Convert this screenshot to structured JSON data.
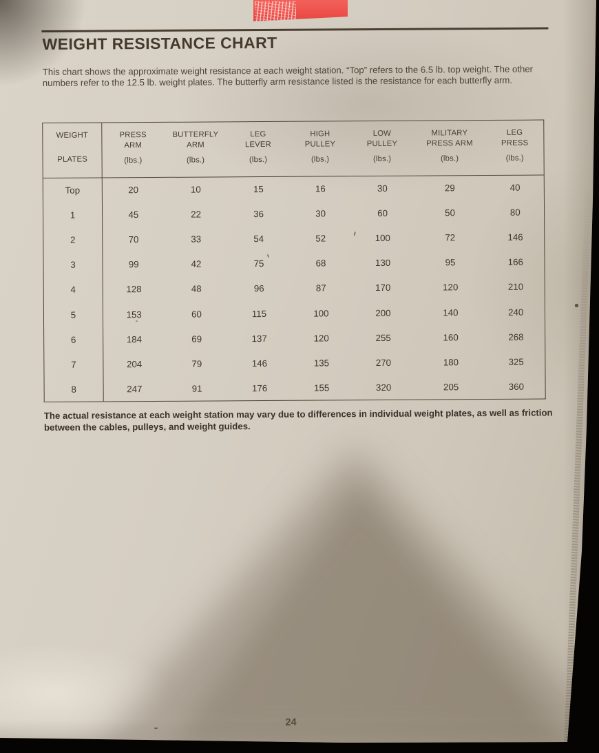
{
  "page": {
    "title": "WEIGHT RESISTANCE CHART",
    "intro": "This chart shows the approximate weight resistance at each weight station. “Top” refers to the 6.5 lb. top weight. The other numbers refer to the 12.5 lb. weight plates. The butterfly arm resistance listed is the resistance for each butterfly arm.",
    "note": "The actual resistance at each weight station may vary due to differences in individual weight plates, as well as friction between the cables, pulleys, and weight guides.",
    "page_number": "24"
  },
  "table": {
    "headers": [
      [
        "WEIGHT",
        "PLATES"
      ],
      [
        "PRESS",
        "ARM",
        "(lbs.)"
      ],
      [
        "BUTTERFLY",
        "ARM",
        "(lbs.)"
      ],
      [
        "LEG",
        "LEVER",
        "(lbs.)"
      ],
      [
        "HIGH",
        "PULLEY",
        "(lbs.)"
      ],
      [
        "LOW",
        "PULLEY",
        "(lbs.)"
      ],
      [
        "MILITARY",
        "PRESS ARM",
        "(lbs.)"
      ],
      [
        "LEG",
        "PRESS",
        "(lbs.)"
      ]
    ],
    "rows": [
      [
        "Top",
        "20",
        "10",
        "15",
        "16",
        "30",
        "29",
        "40"
      ],
      [
        "1",
        "45",
        "22",
        "36",
        "30",
        "60",
        "50",
        "80"
      ],
      [
        "2",
        "70",
        "33",
        "54",
        "52",
        "100",
        "72",
        "146"
      ],
      [
        "3",
        "99",
        "42",
        "75",
        "68",
        "130",
        "95",
        "166"
      ],
      [
        "4",
        "128",
        "48",
        "96",
        "87",
        "170",
        "120",
        "210"
      ],
      [
        "5",
        "153",
        "60",
        "115",
        "100",
        "200",
        "140",
        "240"
      ],
      [
        "6",
        "184",
        "69",
        "137",
        "120",
        "255",
        "160",
        "268"
      ],
      [
        "7",
        "204",
        "79",
        "146",
        "135",
        "270",
        "180",
        "325"
      ],
      [
        "8",
        "247",
        "91",
        "176",
        "155",
        "320",
        "205",
        "360"
      ]
    ]
  },
  "colors": {
    "paper": "#d3ccc0",
    "ink": "#42382d",
    "red_tab": "#ee5350",
    "photo_background": "#050403"
  }
}
